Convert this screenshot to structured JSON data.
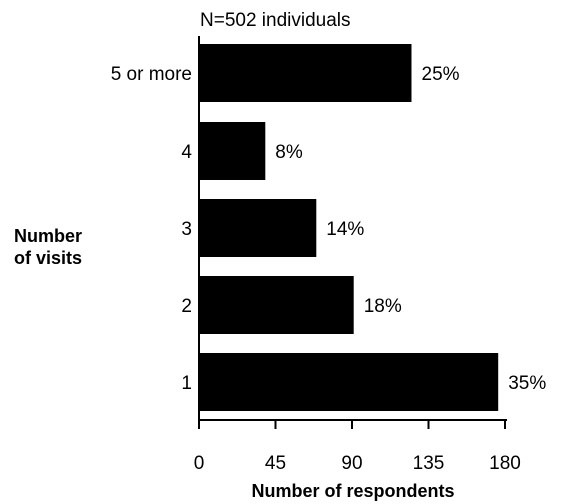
{
  "chart_data": {
    "type": "bar",
    "orientation": "horizontal",
    "annotation": "N=502 individuals",
    "ylabel": [
      "Number",
      "of visits"
    ],
    "xlabel": "Number of respondents",
    "xlim": [
      0,
      180
    ],
    "xticks": [
      "0",
      "45",
      "90",
      "135",
      "180"
    ],
    "grid": false,
    "categories": [
      "5 or more",
      "4",
      "3",
      "2",
      "1"
    ],
    "values": [
      125,
      39,
      69,
      91,
      176
    ],
    "data_labels": [
      "25%",
      "8%",
      "14%",
      "18%",
      "35%"
    ],
    "bar_color": "#000000"
  }
}
